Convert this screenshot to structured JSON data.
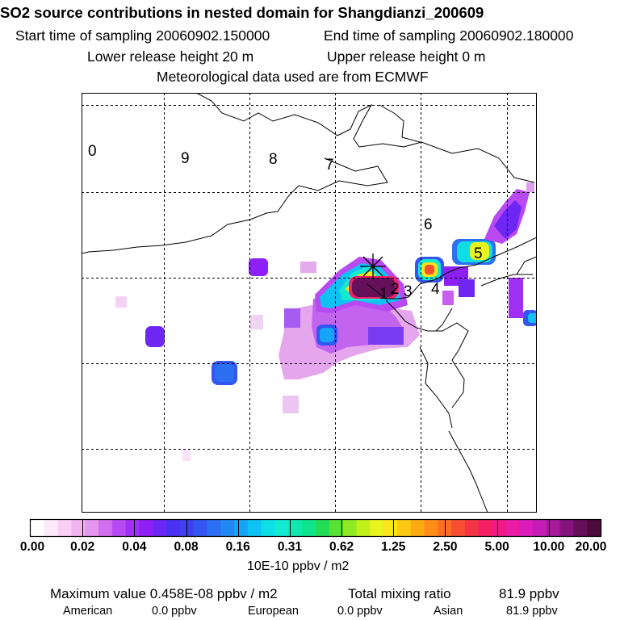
{
  "header": {
    "title": "SO2 source contributions in nested domain for Shangdianzi_200609",
    "start_time": "Start time of sampling 20060902.150000",
    "end_time": "End time of sampling 20060902.180000",
    "lower_release": "Lower release height   20 m",
    "upper_release": "Upper release height    0 m",
    "met_data": "Meteorological data used are from ECMWF"
  },
  "map": {
    "source_numbers": [
      "0",
      "9",
      "8",
      "7",
      "6",
      "5",
      "4",
      "3",
      "2",
      "1"
    ],
    "receptor_marker": "Shangdianzi"
  },
  "colorbar": {
    "ticks": [
      "0.00",
      "0.02",
      "0.04",
      "0.08",
      "0.16",
      "0.31",
      "0.62",
      "1.25",
      "2.50",
      "5.00",
      "10.00",
      "20.00"
    ],
    "colors": [
      "#ffffff",
      "#fde9fb",
      "#f9cff6",
      "#f1b3f1",
      "#e495ee",
      "#d06ff0",
      "#b94af2",
      "#a02ff4",
      "#8e1ff5",
      "#6e27f2",
      "#4b31f0",
      "#3f41f0",
      "#3456f0",
      "#2d6ff2",
      "#2189f4",
      "#16a5f6",
      "#0fc2f3",
      "#0fdfe4",
      "#14ead0",
      "#10e8ae",
      "#10e38c",
      "#22dc55",
      "#58e234",
      "#8eea24",
      "#bff21c",
      "#e9f41e",
      "#f9e61a",
      "#fcc814",
      "#fda914",
      "#fd8c18",
      "#fb6e24",
      "#f74f32",
      "#f33548",
      "#f42066",
      "#f21b86",
      "#ea1ca4",
      "#da1db8",
      "#c51cb8",
      "#a8189b",
      "#86137c",
      "#65105b",
      "#4b0c3c"
    ],
    "unit": "10E-10 ppbv / m2"
  },
  "footer": {
    "max_value": "Maximum value  0.458E-08 ppbv / m2",
    "total_label": "Total mixing ratio",
    "total_value": "81.9 ppbv",
    "regions": [
      {
        "name": "American",
        "value": "0.0 ppbv"
      },
      {
        "name": "European",
        "value": "0.0 ppbv"
      },
      {
        "name": "Asian",
        "value": "81.9 ppbv"
      }
    ]
  }
}
